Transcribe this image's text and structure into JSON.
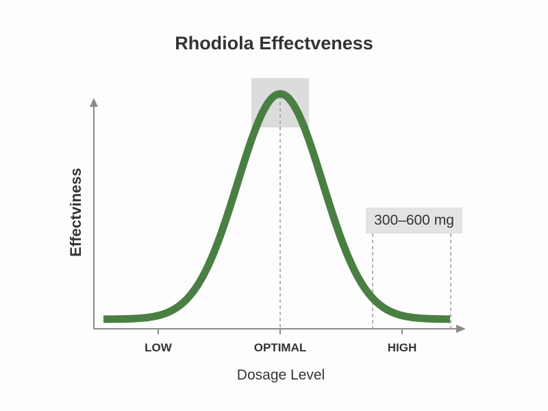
{
  "chart_data": {
    "type": "line",
    "title": "Rhodiola Effectveness",
    "xlabel": "Dosage Level",
    "ylabel": "Effectviness",
    "x_tick_labels": [
      "LOW",
      "OPTIMAL",
      "HIGH"
    ],
    "x": [
      0,
      0.1,
      0.2,
      0.3,
      0.4,
      0.5,
      0.6,
      0.7,
      0.8,
      0.9,
      1.0
    ],
    "series": [
      {
        "name": "Effectiveness",
        "values": [
          0.01,
          0.03,
          0.14,
          0.45,
          0.85,
          1.0,
          0.85,
          0.45,
          0.14,
          0.03,
          0.01
        ],
        "color": "#4a7f43"
      }
    ],
    "peak": {
      "x_label": "OPTIMAL",
      "highlight_color": "#dcdcdc"
    },
    "annotation": {
      "text": "300–600 mg",
      "range": [
        "between OPTIMAL and HIGH",
        "right tail"
      ]
    },
    "grid": false,
    "legend": "none",
    "ylim": [
      0,
      1
    ]
  },
  "title": "Rhodiola Effectveness",
  "axes": {
    "ylabel": "Effectviness",
    "xlabel": "Dosage Level",
    "ticks": [
      "LOW",
      "OPTIMAL",
      "HIGH"
    ]
  },
  "annotation": {
    "label": "300–600 mg"
  },
  "colors": {
    "curve": "#4a7f43",
    "axis": "#8a8a8a",
    "highlight": "#dcdcdc",
    "text": "#333333"
  }
}
